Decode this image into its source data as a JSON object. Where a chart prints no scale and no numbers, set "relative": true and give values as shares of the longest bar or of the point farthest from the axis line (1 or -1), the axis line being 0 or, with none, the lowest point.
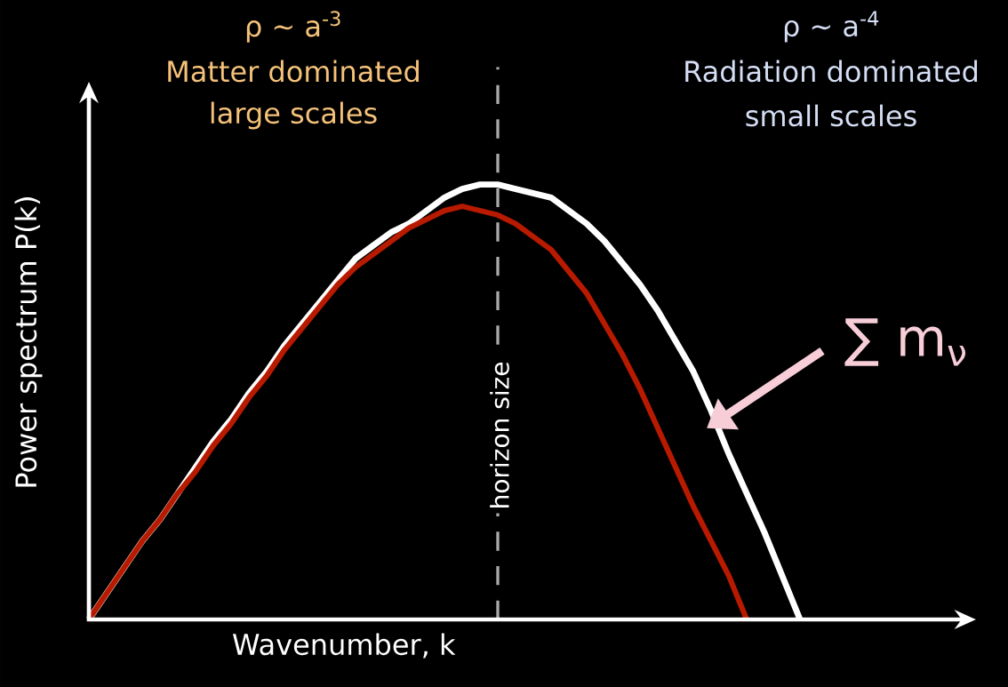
{
  "chart_data": {
    "type": "line",
    "relative": true,
    "xlabel": "Wavenumber, k",
    "ylabel": "Power spectrum P(k)",
    "categories": [
      null,
      null,
      null,
      null,
      null,
      null,
      null,
      null,
      null,
      null,
      null,
      null,
      null,
      null,
      null,
      null,
      null,
      null,
      null,
      null,
      null,
      null,
      null,
      null,
      null,
      null,
      null,
      null,
      null,
      null,
      null,
      null,
      null,
      null,
      null,
      null,
      null,
      null,
      null,
      null,
      null
    ],
    "series": [
      {
        "color": "#ffffff",
        "values": [
          0,
          0.06,
          0.12,
          0.18,
          0.23,
          0.29,
          0.35,
          0.41,
          0.46,
          0.52,
          0.57,
          0.63,
          0.68,
          0.73,
          0.78,
          0.83,
          0.86,
          0.89,
          0.91,
          0.94,
          0.97,
          0.99,
          1.0,
          1.0,
          0.99,
          0.98,
          0.97,
          0.94,
          0.91,
          0.87,
          0.82,
          0.77,
          0.71,
          0.64,
          0.57,
          0.48,
          0.38,
          0.29,
          0.2,
          0.1,
          0
        ]
      },
      {
        "color": "#b81a00",
        "values": [
          0,
          0.06,
          0.12,
          0.18,
          0.23,
          0.29,
          0.34,
          0.4,
          0.45,
          0.51,
          0.56,
          0.62,
          0.67,
          0.72,
          0.77,
          0.81,
          0.84,
          0.87,
          0.9,
          0.92,
          0.94,
          0.95,
          0.94,
          0.93,
          0.91,
          0.88,
          0.85,
          0.8,
          0.75,
          0.68,
          0.61,
          0.53,
          0.44,
          0.35,
          0.26,
          0.18,
          0.1,
          0,
          null,
          null,
          null
        ]
      }
    ],
    "annotations": [
      "ρ ~ a$^{-3}$",
      "Matter dominated",
      "large scales",
      "ρ ~ a$^{-4}$",
      "Radiation dominated",
      "small scales",
      "∑ m$_{ν}$",
      "horizon size"
    ],
    "marker": "none",
    "line_style": "solid"
  }
}
